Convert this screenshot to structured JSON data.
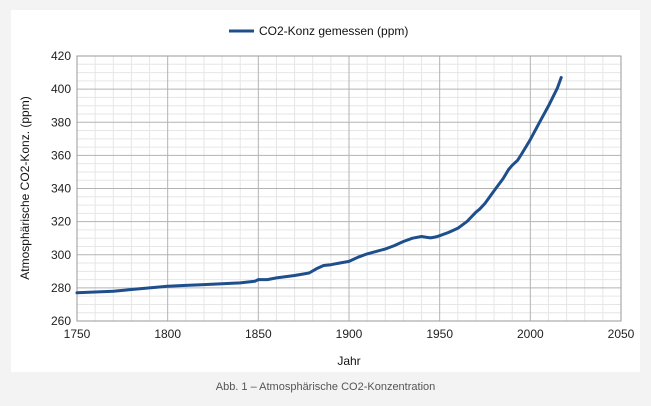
{
  "caption": "Abb. 1 – Atmosphärische CO2-Konzentration",
  "chart_data": {
    "type": "line",
    "title": "",
    "xlabel": "Jahr",
    "ylabel": "Atmosphärische CO2-Konz. (ppm)",
    "xlim": [
      1750,
      2050
    ],
    "ylim": [
      260,
      420
    ],
    "x_ticks": [
      1750,
      1800,
      1850,
      1900,
      1950,
      2000,
      2050
    ],
    "y_ticks": [
      260,
      280,
      300,
      320,
      340,
      360,
      380,
      400,
      420
    ],
    "grid": true,
    "legend_position": "top-center",
    "series": [
      {
        "name": "CO2-Konz gemessen (ppm)",
        "color": "#1f4e8c",
        "x": [
          1750,
          1760,
          1770,
          1780,
          1790,
          1800,
          1810,
          1820,
          1830,
          1840,
          1848,
          1850,
          1855,
          1860,
          1870,
          1878,
          1882,
          1886,
          1890,
          1895,
          1900,
          1905,
          1910,
          1915,
          1920,
          1925,
          1930,
          1935,
          1940,
          1943,
          1945,
          1948,
          1950,
          1955,
          1960,
          1965,
          1970,
          1972,
          1975,
          1980,
          1985,
          1988,
          1990,
          1993,
          1995,
          2000,
          2005,
          2010,
          2015,
          2017
        ],
        "y": [
          277,
          277.5,
          278,
          279,
          280,
          281,
          281.5,
          282,
          282.5,
          283,
          284,
          285,
          285,
          286,
          287.5,
          289,
          291.5,
          293.5,
          294,
          295,
          296,
          298.5,
          300.5,
          302,
          303.5,
          305.5,
          308,
          310,
          311,
          310.5,
          310.2,
          310.8,
          311.5,
          313.5,
          316,
          320,
          325.7,
          327.5,
          331,
          338.7,
          346,
          351.5,
          354,
          357,
          360.5,
          369.5,
          379.8,
          389.9,
          400.8,
          407
        ]
      }
    ]
  }
}
